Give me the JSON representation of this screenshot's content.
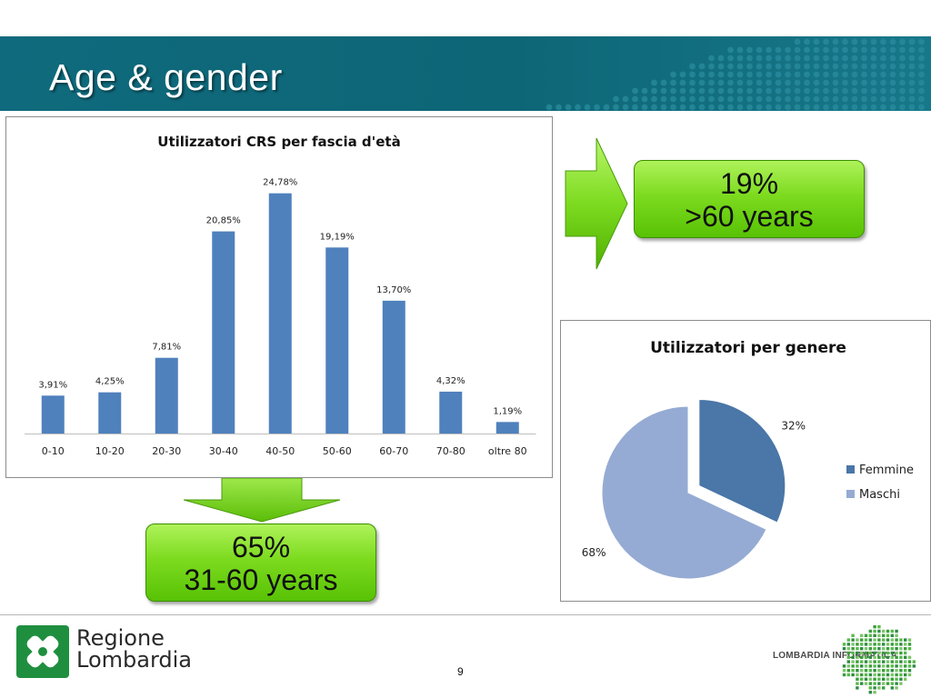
{
  "slide": {
    "title": "Age & gender",
    "page_number": "9"
  },
  "callouts": {
    "top": {
      "line1": "19%",
      "line2": ">60 years"
    },
    "bottom": {
      "line1": "65%",
      "line2": "31-60 years"
    }
  },
  "footer": {
    "brand_line1": "Regione",
    "brand_line2": "Lombardia",
    "partner": "LOMBARDIA INFORMATICA"
  },
  "colors": {
    "banner": "#0f6a7d",
    "bar": "#4f81bd",
    "femmine": "#4a76a8",
    "maschi": "#95abd3",
    "callout_green": "#7ddb1f"
  },
  "chart_data": [
    {
      "type": "bar",
      "title": "Utilizzatori CRS per fascia d'età",
      "categories": [
        "0-10",
        "10-20",
        "20-30",
        "30-40",
        "40-50",
        "50-60",
        "60-70",
        "70-80",
        "oltre 80"
      ],
      "values": [
        3.91,
        4.25,
        7.81,
        20.85,
        24.78,
        19.19,
        13.7,
        4.32,
        1.19
      ],
      "data_labels": [
        "3,91%",
        "4,25%",
        "7,81%",
        "20,85%",
        "24,78%",
        "19,19%",
        "13,70%",
        "4,32%",
        "1,19%"
      ],
      "ylim": [
        0,
        27
      ],
      "grid": false
    },
    {
      "type": "pie",
      "title": "Utilizzatori per genere",
      "labels": [
        "Femmine",
        "Maschi"
      ],
      "values": [
        32,
        68
      ],
      "data_labels": [
        "32%",
        "68%"
      ],
      "legend": "right",
      "exploded": "Femmine"
    }
  ]
}
